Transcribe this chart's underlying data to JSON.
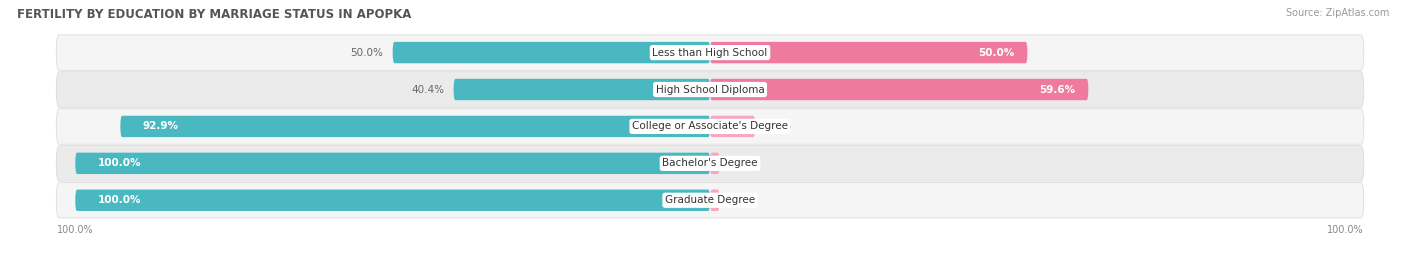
{
  "title": "FERTILITY BY EDUCATION BY MARRIAGE STATUS IN APOPKA",
  "source": "Source: ZipAtlas.com",
  "categories": [
    "Less than High School",
    "High School Diploma",
    "College or Associate's Degree",
    "Bachelor's Degree",
    "Graduate Degree"
  ],
  "married": [
    50.0,
    40.4,
    92.9,
    100.0,
    100.0
  ],
  "unmarried": [
    50.0,
    59.6,
    7.1,
    0.0,
    0.0
  ],
  "married_color": "#4ab8c1",
  "unmarried_color": "#f07a9e",
  "unmarried_light_color": "#f5a8c0",
  "row_bg_color_odd": "#f5f5f5",
  "row_bg_color_even": "#ebebeb",
  "row_border_color": "#d8d8d8",
  "label_bg_color": "#ffffff",
  "title_fontsize": 8.5,
  "source_fontsize": 7,
  "bar_label_fontsize": 7.5,
  "category_fontsize": 7.5,
  "legend_fontsize": 8,
  "axis_label_fontsize": 7,
  "bar_height": 0.58,
  "total_width": 100.0
}
